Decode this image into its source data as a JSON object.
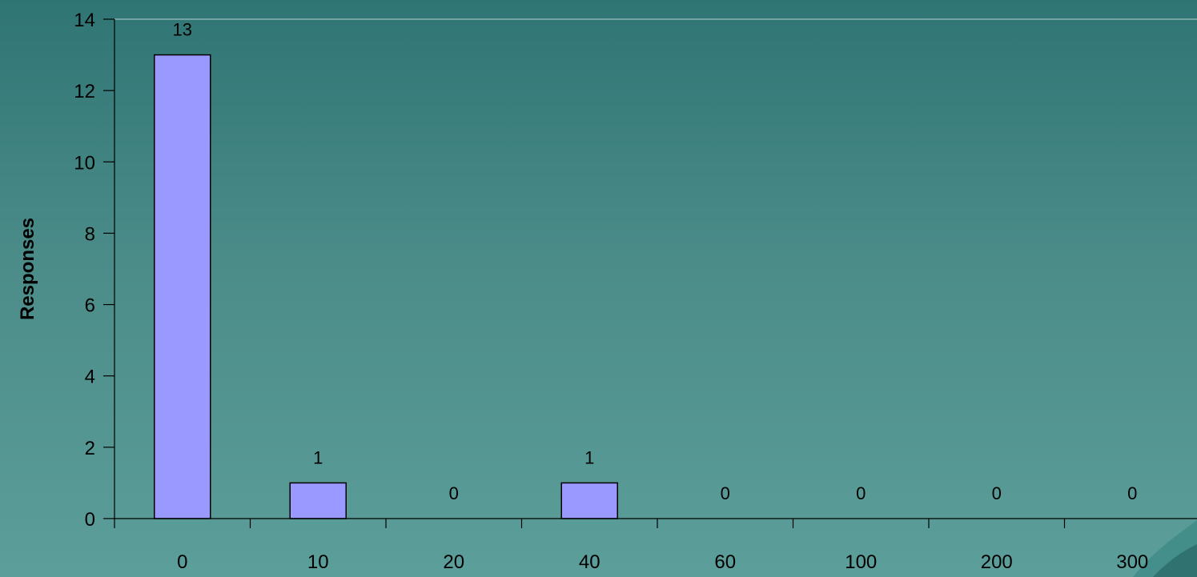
{
  "chart_data": {
    "type": "bar",
    "title": "",
    "xlabel": "",
    "ylabel": "Responses",
    "categories": [
      "0",
      "10",
      "20",
      "40",
      "60",
      "100",
      "200",
      "300"
    ],
    "values": [
      13,
      1,
      0,
      1,
      0,
      0,
      0,
      0
    ],
    "data_labels": [
      "13",
      "1",
      "0",
      "1",
      "0",
      "0",
      "0",
      "0"
    ],
    "ylim": [
      0,
      14
    ],
    "yticks": [
      0,
      2,
      4,
      6,
      8,
      10,
      12,
      14
    ],
    "grid": false,
    "legend": "none",
    "bar_color": "#9999ff",
    "bar_stroke": "#000000",
    "axis_color": "#000000"
  }
}
